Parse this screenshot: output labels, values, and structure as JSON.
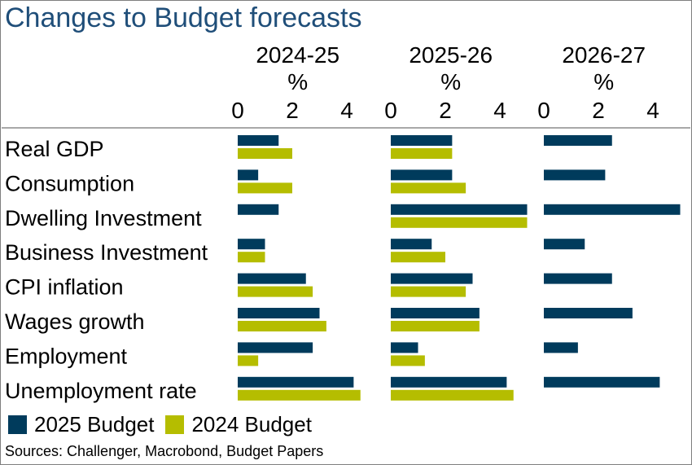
{
  "title": "Changes to Budget forecasts",
  "source": "Sources: Challenger, Macrobond, Budget Papers",
  "colors": {
    "budget_2025": "#003b5c",
    "budget_2024": "#b5bd00"
  },
  "legend": [
    {
      "label": "2025 Budget",
      "color": "#003b5c"
    },
    {
      "label": "2024 Budget",
      "color": "#b5bd00"
    }
  ],
  "chart_data": {
    "type": "bar",
    "orientation": "horizontal",
    "title": "Changes to Budget forecasts",
    "categories": [
      "Real GDP",
      "Consumption",
      "Dwelling Investment",
      "Business Investment",
      "CPI inflation",
      "Wages growth",
      "Employment",
      "Unemployment rate"
    ],
    "panels": [
      {
        "title": "2024-25",
        "unit": "%",
        "ticks": [
          "0",
          "2",
          "4"
        ],
        "xlim": [
          0,
          5
        ],
        "series": [
          {
            "name": "2025 Budget",
            "values": [
              1.5,
              0.75,
              1.5,
              1.0,
              2.5,
              3.0,
              2.75,
              4.25
            ]
          },
          {
            "name": "2024 Budget",
            "values": [
              2.0,
              2.0,
              null,
              1.0,
              2.75,
              3.25,
              0.75,
              4.5
            ]
          }
        ]
      },
      {
        "title": "2025-26",
        "unit": "%",
        "ticks": [
          "0",
          "2",
          "4"
        ],
        "xlim": [
          0,
          5
        ],
        "series": [
          {
            "name": "2025 Budget",
            "values": [
              2.25,
              2.25,
              5.0,
              1.5,
              3.0,
              3.25,
              1.0,
              4.25
            ]
          },
          {
            "name": "2024 Budget",
            "values": [
              2.25,
              2.75,
              5.0,
              2.0,
              2.75,
              3.25,
              1.25,
              4.5
            ]
          }
        ]
      },
      {
        "title": "2026-27",
        "unit": "%",
        "ticks": [
          "0",
          "2",
          "4"
        ],
        "xlim": [
          0,
          5
        ],
        "series": [
          {
            "name": "2025 Budget",
            "values": [
              2.5,
              2.25,
              5.0,
              1.5,
              2.5,
              3.25,
              1.25,
              4.25
            ]
          }
        ]
      }
    ]
  }
}
